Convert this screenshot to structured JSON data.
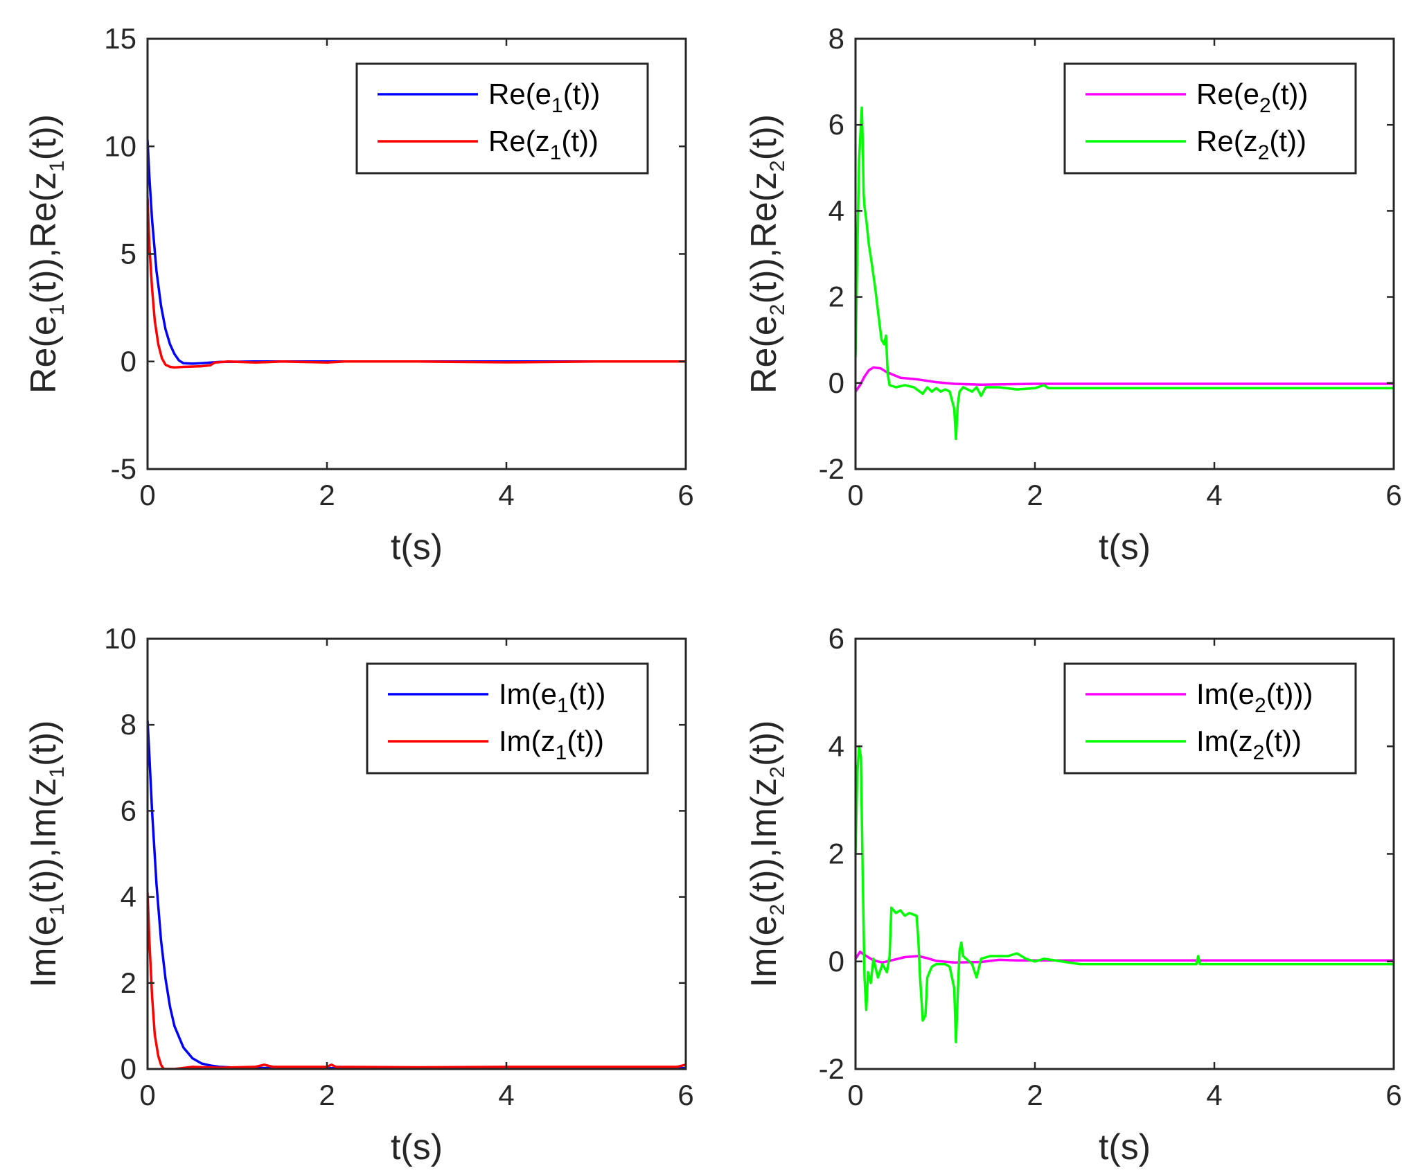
{
  "figure": {
    "xlabel": "t(s)"
  },
  "chart_data": [
    {
      "type": "line",
      "id": "re1",
      "xlim": [
        0,
        6
      ],
      "ylim": [
        -5,
        15
      ],
      "xticks": [
        0,
        2,
        4,
        6
      ],
      "yticks": [
        -5,
        0,
        5,
        10,
        15
      ],
      "xlabel": "t(s)",
      "ylabel": {
        "parts": [
          "Re(e",
          "1",
          "(t)),Re(z",
          "1",
          "(t))"
        ]
      },
      "grid": false,
      "legend_position": "top-right",
      "series": [
        {
          "name_parts": [
            "Re(e",
            "1",
            "(t))"
          ],
          "color": "#0000ff",
          "points": [
            [
              0,
              10.3
            ],
            [
              0.02,
              8.6
            ],
            [
              0.05,
              6.6
            ],
            [
              0.1,
              4.2
            ],
            [
              0.15,
              2.6
            ],
            [
              0.2,
              1.5
            ],
            [
              0.25,
              0.8
            ],
            [
              0.3,
              0.35
            ],
            [
              0.35,
              0.05
            ],
            [
              0.4,
              -0.08
            ],
            [
              0.5,
              -0.1
            ],
            [
              0.6,
              -0.08
            ],
            [
              0.8,
              -0.02
            ],
            [
              1.2,
              0
            ],
            [
              2,
              0
            ],
            [
              3,
              0
            ],
            [
              4,
              0
            ],
            [
              5,
              0
            ],
            [
              6,
              0
            ]
          ]
        },
        {
          "name_parts": [
            "Re(z",
            "1",
            "(t))"
          ],
          "color": "#ff0000",
          "points": [
            [
              0,
              7.6
            ],
            [
              0.02,
              5.4
            ],
            [
              0.05,
              3.4
            ],
            [
              0.08,
              1.9
            ],
            [
              0.12,
              0.8
            ],
            [
              0.16,
              0.15
            ],
            [
              0.2,
              -0.15
            ],
            [
              0.25,
              -0.25
            ],
            [
              0.3,
              -0.28
            ],
            [
              0.4,
              -0.25
            ],
            [
              0.6,
              -0.22
            ],
            [
              0.7,
              -0.18
            ],
            [
              0.75,
              -0.05
            ],
            [
              0.9,
              0
            ],
            [
              1.2,
              -0.05
            ],
            [
              1.5,
              0
            ],
            [
              2,
              -0.05
            ],
            [
              2.2,
              0
            ],
            [
              3,
              0
            ],
            [
              4,
              -0.04
            ],
            [
              5,
              0
            ],
            [
              6,
              0
            ]
          ]
        }
      ]
    },
    {
      "type": "line",
      "id": "re2",
      "xlim": [
        0,
        6
      ],
      "ylim": [
        -2,
        8
      ],
      "xticks": [
        0,
        2,
        4,
        6
      ],
      "yticks": [
        -2,
        0,
        2,
        4,
        6,
        8
      ],
      "xlabel": "t(s)",
      "ylabel": {
        "parts": [
          "Re(e",
          "2",
          "(t)),Re(z",
          "2",
          "(t))"
        ]
      },
      "grid": false,
      "legend_position": "top-right",
      "series": [
        {
          "name_parts": [
            "Re(e",
            "2",
            "(t))"
          ],
          "color": "#ff00ff",
          "points": [
            [
              0,
              -0.2
            ],
            [
              0.05,
              -0.05
            ],
            [
              0.1,
              0.15
            ],
            [
              0.15,
              0.3
            ],
            [
              0.2,
              0.36
            ],
            [
              0.28,
              0.34
            ],
            [
              0.35,
              0.25
            ],
            [
              0.5,
              0.12
            ],
            [
              0.7,
              0.08
            ],
            [
              0.9,
              0.02
            ],
            [
              1.1,
              -0.02
            ],
            [
              1.4,
              -0.04
            ],
            [
              2,
              -0.02
            ],
            [
              3,
              -0.02
            ],
            [
              4,
              -0.02
            ],
            [
              5,
              -0.02
            ],
            [
              6,
              -0.02
            ]
          ]
        },
        {
          "name_parts": [
            "Re(z",
            "2",
            "(t))"
          ],
          "color": "#00ff00",
          "points": [
            [
              0,
              0.6
            ],
            [
              0.02,
              3.0
            ],
            [
              0.04,
              5.2
            ],
            [
              0.06,
              6.0
            ],
            [
              0.07,
              6.4
            ],
            [
              0.08,
              5.6
            ],
            [
              0.09,
              4.4
            ],
            [
              0.1,
              4.1
            ],
            [
              0.12,
              3.8
            ],
            [
              0.15,
              3.2
            ],
            [
              0.18,
              2.8
            ],
            [
              0.22,
              2.2
            ],
            [
              0.26,
              1.5
            ],
            [
              0.29,
              1.0
            ],
            [
              0.32,
              0.9
            ],
            [
              0.34,
              1.1
            ],
            [
              0.36,
              0.2
            ],
            [
              0.38,
              -0.05
            ],
            [
              0.45,
              -0.1
            ],
            [
              0.55,
              -0.05
            ],
            [
              0.65,
              -0.1
            ],
            [
              0.75,
              -0.25
            ],
            [
              0.8,
              -0.1
            ],
            [
              0.85,
              -0.2
            ],
            [
              0.9,
              -0.12
            ],
            [
              0.95,
              -0.2
            ],
            [
              1.0,
              -0.15
            ],
            [
              1.05,
              -0.2
            ],
            [
              1.1,
              -0.6
            ],
            [
              1.12,
              -1.3
            ],
            [
              1.14,
              -0.5
            ],
            [
              1.16,
              -0.2
            ],
            [
              1.2,
              -0.1
            ],
            [
              1.3,
              -0.2
            ],
            [
              1.35,
              -0.1
            ],
            [
              1.4,
              -0.3
            ],
            [
              1.45,
              -0.1
            ],
            [
              1.6,
              -0.1
            ],
            [
              1.8,
              -0.15
            ],
            [
              2.0,
              -0.12
            ],
            [
              2.1,
              -0.05
            ],
            [
              2.15,
              -0.12
            ],
            [
              3,
              -0.12
            ],
            [
              4,
              -0.12
            ],
            [
              5,
              -0.12
            ],
            [
              6,
              -0.12
            ]
          ]
        }
      ]
    },
    {
      "type": "line",
      "id": "im1",
      "xlim": [
        0,
        6
      ],
      "ylim": [
        0,
        10
      ],
      "xticks": [
        0,
        2,
        4,
        6
      ],
      "yticks": [
        0,
        2,
        4,
        6,
        8,
        10
      ],
      "xlabel": "t(s)",
      "ylabel": {
        "parts": [
          "Im(e",
          "1",
          "(t)),Im(z",
          "1",
          "(t))"
        ]
      },
      "grid": false,
      "legend_position": "top-right",
      "series": [
        {
          "name_parts": [
            "Im(e",
            "1",
            "(t))"
          ],
          "color": "#0000ff",
          "points": [
            [
              0,
              8.1
            ],
            [
              0.02,
              7.3
            ],
            [
              0.05,
              6.0
            ],
            [
              0.1,
              4.3
            ],
            [
              0.15,
              3.0
            ],
            [
              0.2,
              2.1
            ],
            [
              0.25,
              1.45
            ],
            [
              0.3,
              1.0
            ],
            [
              0.4,
              0.5
            ],
            [
              0.5,
              0.25
            ],
            [
              0.6,
              0.13
            ],
            [
              0.7,
              0.08
            ],
            [
              0.8,
              0.05
            ],
            [
              1,
              0.03
            ],
            [
              1.5,
              0.02
            ],
            [
              2,
              0.02
            ],
            [
              3,
              0.02
            ],
            [
              4,
              0.02
            ],
            [
              5,
              0.02
            ],
            [
              6,
              0.02
            ]
          ]
        },
        {
          "name_parts": [
            "Im(z",
            "1",
            "(t))"
          ],
          "color": "#ff0000",
          "points": [
            [
              0,
              4.1
            ],
            [
              0.02,
              3.0
            ],
            [
              0.05,
              1.7
            ],
            [
              0.08,
              0.8
            ],
            [
              0.12,
              0.3
            ],
            [
              0.15,
              0.1
            ],
            [
              0.18,
              0
            ],
            [
              0.3,
              0
            ],
            [
              0.5,
              0.05
            ],
            [
              0.8,
              0.03
            ],
            [
              1.2,
              0.05
            ],
            [
              1.3,
              0.1
            ],
            [
              1.4,
              0.05
            ],
            [
              2,
              0.05
            ],
            [
              2.05,
              0.1
            ],
            [
              2.1,
              0.05
            ],
            [
              3,
              0.04
            ],
            [
              4,
              0.05
            ],
            [
              5,
              0.05
            ],
            [
              5.9,
              0.05
            ],
            [
              6,
              0.1
            ]
          ]
        }
      ]
    },
    {
      "type": "line",
      "id": "im2",
      "xlim": [
        0,
        6
      ],
      "ylim": [
        -2,
        6
      ],
      "xticks": [
        0,
        2,
        4,
        6
      ],
      "yticks": [
        -2,
        0,
        2,
        4,
        6
      ],
      "xlabel": "t(s)",
      "ylabel": {
        "parts": [
          "Im(e",
          "2",
          "(t)),Im(z",
          "2",
          "(t))"
        ]
      },
      "grid": false,
      "legend_position": "top-right",
      "series": [
        {
          "name_parts": [
            "Im(e",
            "2",
            "(t)))"
          ],
          "color": "#ff00ff",
          "points": [
            [
              0,
              0.05
            ],
            [
              0.05,
              0.18
            ],
            [
              0.1,
              0.12
            ],
            [
              0.2,
              0.02
            ],
            [
              0.3,
              -0.02
            ],
            [
              0.4,
              0.02
            ],
            [
              0.55,
              0.08
            ],
            [
              0.7,
              0.1
            ],
            [
              0.8,
              0.06
            ],
            [
              0.9,
              0.01
            ],
            [
              1.1,
              -0.02
            ],
            [
              1.4,
              -0.01
            ],
            [
              1.6,
              0.03
            ],
            [
              1.8,
              0.02
            ],
            [
              2,
              0.02
            ],
            [
              3,
              0.02
            ],
            [
              4,
              0.02
            ],
            [
              5,
              0.02
            ],
            [
              6,
              0.02
            ]
          ]
        },
        {
          "name_parts": [
            "Im(z",
            "2",
            "(t))"
          ],
          "color": "#00ff00",
          "points": [
            [
              0,
              2.0
            ],
            [
              0.02,
              3.5
            ],
            [
              0.04,
              4.0
            ],
            [
              0.06,
              3.8
            ],
            [
              0.08,
              1.6
            ],
            [
              0.1,
              -0.3
            ],
            [
              0.12,
              -0.9
            ],
            [
              0.14,
              -0.2
            ],
            [
              0.17,
              -0.4
            ],
            [
              0.2,
              0.05
            ],
            [
              0.25,
              -0.3
            ],
            [
              0.3,
              -0.05
            ],
            [
              0.35,
              -0.2
            ],
            [
              0.38,
              0.1
            ],
            [
              0.4,
              1.0
            ],
            [
              0.45,
              0.9
            ],
            [
              0.5,
              0.95
            ],
            [
              0.55,
              0.85
            ],
            [
              0.6,
              0.9
            ],
            [
              0.68,
              0.85
            ],
            [
              0.7,
              0.4
            ],
            [
              0.72,
              -0.3
            ],
            [
              0.75,
              -1.1
            ],
            [
              0.78,
              -1.0
            ],
            [
              0.8,
              -0.3
            ],
            [
              0.85,
              -0.1
            ],
            [
              0.9,
              -0.05
            ],
            [
              1.0,
              -0.05
            ],
            [
              1.05,
              -0.1
            ],
            [
              1.1,
              -0.5
            ],
            [
              1.12,
              -1.5
            ],
            [
              1.14,
              -0.6
            ],
            [
              1.16,
              0.2
            ],
            [
              1.18,
              0.35
            ],
            [
              1.2,
              0.1
            ],
            [
              1.3,
              -0.05
            ],
            [
              1.35,
              -0.3
            ],
            [
              1.4,
              0.05
            ],
            [
              1.5,
              0.1
            ],
            [
              1.7,
              0.1
            ],
            [
              1.8,
              0.15
            ],
            [
              1.9,
              0.05
            ],
            [
              2,
              0
            ],
            [
              2.1,
              0.05
            ],
            [
              2.5,
              -0.05
            ],
            [
              3,
              -0.05
            ],
            [
              3.8,
              -0.05
            ],
            [
              3.82,
              0.1
            ],
            [
              3.84,
              -0.05
            ],
            [
              4,
              -0.05
            ],
            [
              5,
              -0.05
            ],
            [
              6,
              -0.05
            ]
          ]
        }
      ]
    }
  ]
}
